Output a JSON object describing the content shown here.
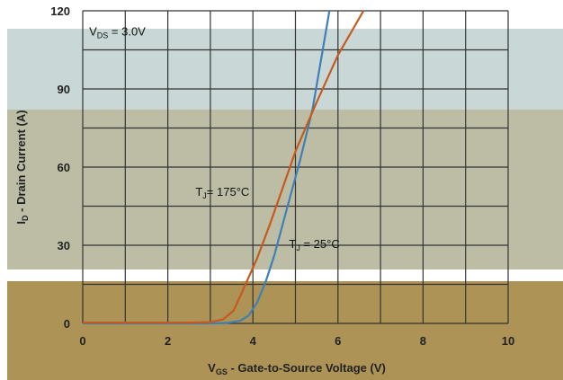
{
  "chart_data": {
    "type": "line",
    "xlabel": {
      "main": "V",
      "sub": "GS",
      "rest": " - Gate-to-Source Voltage (V)"
    },
    "ylabel": {
      "main": "I",
      "sub": "D",
      "rest": " - Drain Current (A)"
    },
    "xlim": [
      0,
      10
    ],
    "ylim": [
      0,
      120
    ],
    "xticks": [
      0,
      2,
      4,
      6,
      8,
      10
    ],
    "yticks": [
      0,
      30,
      60,
      90,
      120
    ],
    "grid": true,
    "series": [
      {
        "name": "TJ = 25°C",
        "color": "#3f7fb5",
        "points": [
          [
            0,
            0
          ],
          [
            3.0,
            0
          ],
          [
            3.4,
            0.2
          ],
          [
            3.7,
            1.0
          ],
          [
            3.9,
            3
          ],
          [
            4.1,
            8
          ],
          [
            4.3,
            16
          ],
          [
            4.5,
            26
          ],
          [
            4.8,
            44
          ],
          [
            5.1,
            62
          ],
          [
            5.4,
            82
          ],
          [
            5.8,
            120
          ]
        ]
      },
      {
        "name": "TJ = 175°C",
        "color": "#c65a1c",
        "points": [
          [
            0,
            0.3
          ],
          [
            2.5,
            0.3
          ],
          [
            3.0,
            0.5
          ],
          [
            3.3,
            1.5
          ],
          [
            3.55,
            5
          ],
          [
            3.8,
            14
          ],
          [
            4.1,
            25
          ],
          [
            4.4,
            38
          ],
          [
            4.7,
            52
          ],
          [
            5.0,
            66
          ],
          [
            5.5,
            85
          ],
          [
            6.0,
            103
          ],
          [
            6.6,
            120
          ]
        ]
      }
    ],
    "annotations": [
      {
        "main": "V",
        "sub": "DS",
        "rest": " = 3.0V",
        "x": 0.15,
        "y": 110.5
      },
      {
        "main": "T",
        "sub": "J",
        "rest": "= 175°C",
        "x": 2.65,
        "y": 49
      },
      {
        "main": "T",
        "sub": "J",
        "rest": " = 25°C",
        "x": 4.85,
        "y": 29
      }
    ]
  }
}
